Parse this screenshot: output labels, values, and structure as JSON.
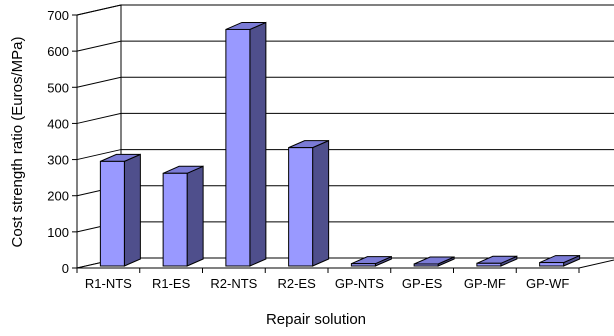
{
  "chart_data": {
    "type": "bar",
    "style": "3d-column",
    "title": "",
    "xlabel": "Repair solution",
    "ylabel": "Cost strength ratio (Euros/MPa)",
    "ylim": [
      0,
      700
    ],
    "yticks": [
      0,
      100,
      200,
      300,
      400,
      500,
      600,
      700
    ],
    "grid": true,
    "legend": "none",
    "categories": [
      "R1-NTS",
      "R1-ES",
      "R2-NTS",
      "R2-ES",
      "GP-NTS",
      "GP-ES",
      "GP-MF",
      "GP-WF"
    ],
    "values": [
      295,
      262,
      660,
      333,
      12,
      10,
      13,
      15
    ],
    "colors": {
      "bar_front": "#9999ff",
      "bar_side": "#4f4f8c",
      "bar_top": "#7b7bd6",
      "grid": "#000000",
      "wall": "#ffffff"
    }
  }
}
